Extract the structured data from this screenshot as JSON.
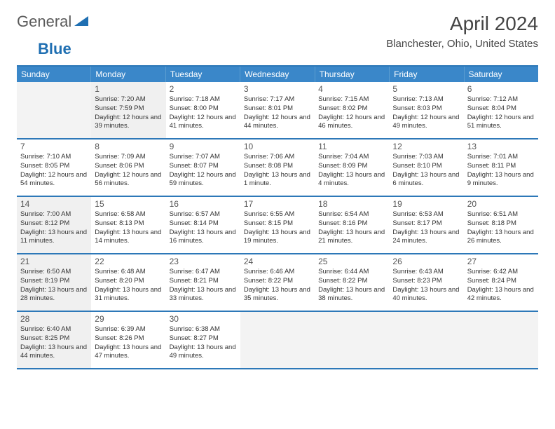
{
  "brand": {
    "word1": "General",
    "word2": "Blue"
  },
  "title": "April 2024",
  "location": "Blanchester, Ohio, United States",
  "colors": {
    "header_bg": "#3a87c9",
    "header_border": "#2d78b8",
    "shade_bg": "#f0f0f0",
    "empty_bg": "#f3f3f3",
    "text": "#333333"
  },
  "days_of_week": [
    "Sunday",
    "Monday",
    "Tuesday",
    "Wednesday",
    "Thursday",
    "Friday",
    "Saturday"
  ],
  "weeks": [
    [
      {
        "n": "",
        "empty": true
      },
      {
        "n": "1",
        "shade": true,
        "sr": "7:20 AM",
        "ss": "7:59 PM",
        "dl": "12 hours and 39 minutes."
      },
      {
        "n": "2",
        "sr": "7:18 AM",
        "ss": "8:00 PM",
        "dl": "12 hours and 41 minutes."
      },
      {
        "n": "3",
        "sr": "7:17 AM",
        "ss": "8:01 PM",
        "dl": "12 hours and 44 minutes."
      },
      {
        "n": "4",
        "sr": "7:15 AM",
        "ss": "8:02 PM",
        "dl": "12 hours and 46 minutes."
      },
      {
        "n": "5",
        "sr": "7:13 AM",
        "ss": "8:03 PM",
        "dl": "12 hours and 49 minutes."
      },
      {
        "n": "6",
        "sr": "7:12 AM",
        "ss": "8:04 PM",
        "dl": "12 hours and 51 minutes."
      }
    ],
    [
      {
        "n": "7",
        "sr": "7:10 AM",
        "ss": "8:05 PM",
        "dl": "12 hours and 54 minutes."
      },
      {
        "n": "8",
        "sr": "7:09 AM",
        "ss": "8:06 PM",
        "dl": "12 hours and 56 minutes."
      },
      {
        "n": "9",
        "sr": "7:07 AM",
        "ss": "8:07 PM",
        "dl": "12 hours and 59 minutes."
      },
      {
        "n": "10",
        "sr": "7:06 AM",
        "ss": "8:08 PM",
        "dl": "13 hours and 1 minute."
      },
      {
        "n": "11",
        "sr": "7:04 AM",
        "ss": "8:09 PM",
        "dl": "13 hours and 4 minutes."
      },
      {
        "n": "12",
        "sr": "7:03 AM",
        "ss": "8:10 PM",
        "dl": "13 hours and 6 minutes."
      },
      {
        "n": "13",
        "sr": "7:01 AM",
        "ss": "8:11 PM",
        "dl": "13 hours and 9 minutes."
      }
    ],
    [
      {
        "n": "14",
        "shade": true,
        "sr": "7:00 AM",
        "ss": "8:12 PM",
        "dl": "13 hours and 11 minutes."
      },
      {
        "n": "15",
        "sr": "6:58 AM",
        "ss": "8:13 PM",
        "dl": "13 hours and 14 minutes."
      },
      {
        "n": "16",
        "sr": "6:57 AM",
        "ss": "8:14 PM",
        "dl": "13 hours and 16 minutes."
      },
      {
        "n": "17",
        "sr": "6:55 AM",
        "ss": "8:15 PM",
        "dl": "13 hours and 19 minutes."
      },
      {
        "n": "18",
        "sr": "6:54 AM",
        "ss": "8:16 PM",
        "dl": "13 hours and 21 minutes."
      },
      {
        "n": "19",
        "sr": "6:53 AM",
        "ss": "8:17 PM",
        "dl": "13 hours and 24 minutes."
      },
      {
        "n": "20",
        "sr": "6:51 AM",
        "ss": "8:18 PM",
        "dl": "13 hours and 26 minutes."
      }
    ],
    [
      {
        "n": "21",
        "shade": true,
        "sr": "6:50 AM",
        "ss": "8:19 PM",
        "dl": "13 hours and 28 minutes."
      },
      {
        "n": "22",
        "sr": "6:48 AM",
        "ss": "8:20 PM",
        "dl": "13 hours and 31 minutes."
      },
      {
        "n": "23",
        "sr": "6:47 AM",
        "ss": "8:21 PM",
        "dl": "13 hours and 33 minutes."
      },
      {
        "n": "24",
        "sr": "6:46 AM",
        "ss": "8:22 PM",
        "dl": "13 hours and 35 minutes."
      },
      {
        "n": "25",
        "sr": "6:44 AM",
        "ss": "8:22 PM",
        "dl": "13 hours and 38 minutes."
      },
      {
        "n": "26",
        "sr": "6:43 AM",
        "ss": "8:23 PM",
        "dl": "13 hours and 40 minutes."
      },
      {
        "n": "27",
        "sr": "6:42 AM",
        "ss": "8:24 PM",
        "dl": "13 hours and 42 minutes."
      }
    ],
    [
      {
        "n": "28",
        "shade": true,
        "sr": "6:40 AM",
        "ss": "8:25 PM",
        "dl": "13 hours and 44 minutes."
      },
      {
        "n": "29",
        "sr": "6:39 AM",
        "ss": "8:26 PM",
        "dl": "13 hours and 47 minutes."
      },
      {
        "n": "30",
        "sr": "6:38 AM",
        "ss": "8:27 PM",
        "dl": "13 hours and 49 minutes."
      },
      {
        "n": "",
        "empty": true
      },
      {
        "n": "",
        "empty": true
      },
      {
        "n": "",
        "empty": true
      },
      {
        "n": "",
        "empty": true
      }
    ]
  ],
  "labels": {
    "sunrise": "Sunrise:",
    "sunset": "Sunset:",
    "daylight": "Daylight:"
  }
}
